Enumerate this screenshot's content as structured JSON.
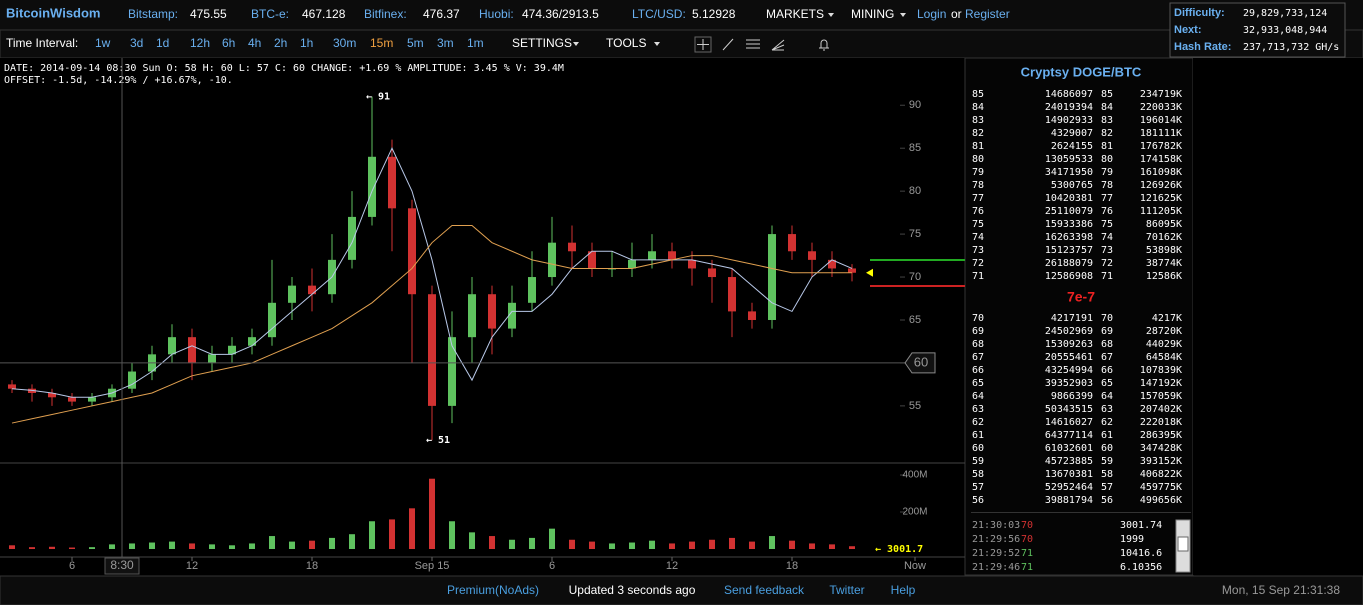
{
  "header": {
    "brand": "BitcoinWisdom",
    "tickers": [
      {
        "label": "Bitstamp:",
        "value": "475.55"
      },
      {
        "label": "BTC-e:",
        "value": "467.128"
      },
      {
        "label": "Bitfinex:",
        "value": "476.37"
      },
      {
        "label": "Huobi:",
        "value": "474.36/2913.5"
      },
      {
        "label": "LTC/USD:",
        "value": "5.12928"
      }
    ],
    "menus": [
      "MARKETS",
      "MINING"
    ],
    "login": "Login",
    "or": "or",
    "register": "Register"
  },
  "stats": [
    {
      "label": "Difficulty:",
      "value": "29,829,733,124"
    },
    {
      "label": "Next:",
      "value": "32,933,048,944"
    },
    {
      "label": "Hash Rate:",
      "value": "237,713,732 GH/s"
    }
  ],
  "toolbar": {
    "label": "Time Interval:",
    "intervals": [
      "1w",
      "3d",
      "1d",
      "12h",
      "6h",
      "4h",
      "2h",
      "1h",
      "30m",
      "15m",
      "5m",
      "3m",
      "1m"
    ],
    "active": 9,
    "settings": "SETTINGS",
    "tools": "TOOLS"
  },
  "chart_data": {
    "type": "candlestick",
    "info": "DATE: 2014-09-14 08:30 Sun   O: 58   H: 60   L: 57   C: 60   CHANGE: +1.69 %   AMPLITUDE: 3.45 %   V: 39.4M",
    "offset": "OFFSET: -1.5d, -14.29% / +16.67%, -10.",
    "x": [
      3,
      4,
      5,
      6,
      7,
      8,
      9,
      10,
      11,
      12,
      13,
      14,
      15,
      16,
      17,
      18,
      19,
      20,
      21,
      22,
      23,
      24,
      25,
      26,
      27,
      28,
      29,
      30,
      31,
      32,
      33,
      34,
      35,
      36,
      37,
      38,
      39,
      40,
      41,
      42,
      43,
      44,
      45
    ],
    "open": [
      57.5,
      57,
      56.5,
      56,
      55.5,
      56,
      57,
      59,
      61,
      63,
      60,
      61,
      62,
      63,
      67,
      69,
      68,
      72,
      77,
      84,
      78,
      68,
      55,
      63,
      68,
      64,
      67,
      70,
      74,
      73,
      71,
      71,
      72,
      73,
      72,
      71,
      70,
      66,
      65,
      75,
      73,
      72,
      71
    ],
    "high": [
      58,
      57.5,
      57,
      56.5,
      56.5,
      57.5,
      60,
      62,
      64.5,
      64,
      62,
      63,
      64,
      72,
      70,
      71,
      75,
      80,
      91,
      86,
      79,
      69,
      66,
      70,
      69,
      69,
      73,
      77,
      76,
      74,
      73,
      74,
      75,
      74,
      73,
      72,
      71,
      67,
      76,
      76,
      74,
      73,
      71.5
    ],
    "low": [
      56.5,
      55.5,
      55,
      55,
      55,
      55.5,
      56.5,
      58,
      60,
      58,
      59,
      60,
      61,
      62,
      65,
      66,
      67,
      71,
      76,
      73,
      60,
      51,
      53,
      60,
      61,
      63,
      66,
      69,
      71,
      70,
      70,
      70,
      71,
      71,
      69,
      67,
      63,
      64,
      64,
      72,
      70,
      70,
      69.5
    ],
    "close": [
      57,
      56.5,
      56,
      55.5,
      56,
      57,
      59,
      61,
      63,
      60,
      61,
      62,
      63,
      67,
      69,
      68,
      72,
      77,
      84,
      78,
      68,
      55,
      63,
      68,
      64,
      67,
      70,
      74,
      73,
      71,
      71,
      72,
      73,
      72,
      71,
      70,
      66,
      65,
      75,
      73,
      72,
      71,
      70.5
    ],
    "volume": [
      20,
      10,
      12,
      8,
      10,
      25,
      30,
      35,
      40,
      30,
      25,
      20,
      30,
      70,
      40,
      45,
      60,
      80,
      150,
      160,
      220,
      380,
      150,
      90,
      70,
      50,
      60,
      110,
      50,
      40,
      30,
      35,
      45,
      30,
      40,
      50,
      60,
      40,
      70,
      45,
      30,
      25,
      15
    ],
    "ma_lines": [
      {
        "color": "#b8c8e8",
        "values": [
          57,
          56.8,
          56.5,
          56,
          56,
          56.5,
          57.5,
          59,
          61,
          62,
          61,
          61,
          62,
          64,
          66,
          68,
          70,
          74,
          80,
          85,
          80,
          72,
          62,
          58,
          63,
          66,
          66,
          68,
          71,
          73,
          73,
          72,
          72,
          72,
          72,
          71.5,
          71,
          69,
          67,
          66,
          70,
          72,
          71
        ]
      },
      {
        "color": "#e0a050",
        "values": [
          53,
          53.5,
          54,
          54.5,
          55,
          55.5,
          56,
          56.5,
          57.5,
          58.5,
          59,
          59.5,
          60,
          61,
          62,
          63,
          64,
          65.5,
          67,
          69,
          71,
          74,
          76,
          76,
          74,
          73,
          72,
          71.5,
          71,
          71,
          71,
          71,
          71.5,
          72,
          72.5,
          72.5,
          72,
          71.5,
          71,
          70.5,
          70.5,
          70.5,
          70.5
        ]
      }
    ],
    "up_color": "#5fc25f",
    "down_color": "#d23232",
    "xlim": [
      2.4,
      50.65
    ],
    "ylim": [
      48.7,
      95.5
    ],
    "yticks": [
      55,
      60,
      65,
      70,
      75,
      80,
      85,
      90
    ],
    "vlim": [
      0,
      465
    ],
    "vticks": [
      {
        "value": 200,
        "label": "200M"
      },
      {
        "value": 400,
        "label": "400M"
      }
    ],
    "xticks": [
      6,
      12,
      18,
      {
        "value": 24,
        "label": "Sep 15"
      },
      {
        "value": 30,
        "label": "6"
      },
      {
        "value": 36,
        "label": "12"
      },
      {
        "value": 42,
        "label": "18"
      },
      {
        "value": 48.15,
        "label": "Now"
      }
    ],
    "crosshair": {
      "x": 8.5,
      "x_label": "8:30",
      "y": 60,
      "y_label": "60"
    },
    "annotations": [
      {
        "x": 21,
        "y": 91,
        "label": "← 91"
      },
      {
        "x": 24,
        "y": 51,
        "label": "← 51"
      }
    ],
    "last_trade_label": "← 3001.7"
  },
  "orderbook": {
    "title": "Cryptsy DOGE/BTC",
    "asks": [
      [
        "85",
        "14686097",
        "85",
        "234719K"
      ],
      [
        "84",
        "24019394",
        "84",
        "220033K"
      ],
      [
        "83",
        "14902933",
        "83",
        "196014K"
      ],
      [
        "82",
        "4329007",
        "82",
        "181111K"
      ],
      [
        "81",
        "2624155",
        "81",
        "176782K"
      ],
      [
        "80",
        "13059533",
        "80",
        "174158K"
      ],
      [
        "79",
        "34171950",
        "79",
        "161098K"
      ],
      [
        "78",
        "5300765",
        "78",
        "126926K"
      ],
      [
        "77",
        "10420381",
        "77",
        "121625K"
      ],
      [
        "76",
        "25110079",
        "76",
        "111205K"
      ],
      [
        "75",
        "15933386",
        "75",
        "86095K"
      ],
      [
        "74",
        "16263398",
        "74",
        "70162K"
      ],
      [
        "73",
        "15123757",
        "73",
        "53898K"
      ],
      [
        "72",
        "26188079",
        "72",
        "38774K"
      ],
      [
        "71",
        "12586908",
        "71",
        "12586K"
      ]
    ],
    "spread": "7e-7",
    "bids": [
      [
        "70",
        "4217191",
        "70",
        "4217K"
      ],
      [
        "69",
        "24502969",
        "69",
        "28720K"
      ],
      [
        "68",
        "15309263",
        "68",
        "44029K"
      ],
      [
        "67",
        "20555461",
        "67",
        "64584K"
      ],
      [
        "66",
        "43254994",
        "66",
        "107839K"
      ],
      [
        "65",
        "39352903",
        "65",
        "147192K"
      ],
      [
        "64",
        "9866399",
        "64",
        "157059K"
      ],
      [
        "63",
        "50343515",
        "63",
        "207402K"
      ],
      [
        "62",
        "14616027",
        "62",
        "222018K"
      ],
      [
        "61",
        "64377114",
        "61",
        "286395K"
      ],
      [
        "60",
        "61032601",
        "60",
        "347428K"
      ],
      [
        "59",
        "45723885",
        "59",
        "393152K"
      ],
      [
        "58",
        "13670381",
        "58",
        "406822K"
      ],
      [
        "57",
        "52952464",
        "57",
        "459775K"
      ],
      [
        "56",
        "39881794",
        "56",
        "499656K"
      ]
    ]
  },
  "trades": [
    {
      "time": "21:30:03",
      "price": "70",
      "amount": "3001.74",
      "side": "sell"
    },
    {
      "time": "21:29:56",
      "price": "70",
      "amount": "1999",
      "side": "sell"
    },
    {
      "time": "21:29:52",
      "price": "71",
      "amount": "10416.6",
      "side": "buy"
    },
    {
      "time": "21:29:46",
      "price": "71",
      "amount": "6.10356",
      "side": "buy"
    }
  ],
  "footer": {
    "links": [
      "Premium(NoAds)",
      "Updated 3 seconds ago",
      "Send feedback",
      "Twitter",
      "Help"
    ],
    "clock": "Mon, 15 Sep 21:31:38"
  }
}
